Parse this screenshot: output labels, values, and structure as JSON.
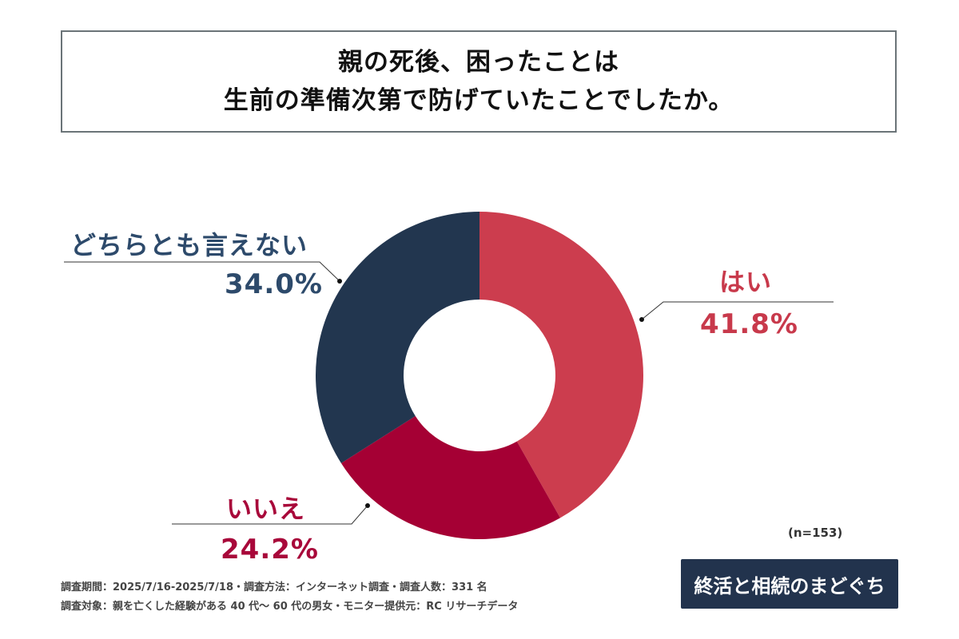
{
  "chart_data": {
    "type": "pie",
    "style": "donut",
    "title_lines": [
      "親の死後、困ったことは",
      "生前の準備次第で防げていたことでしたか。"
    ],
    "categories": [
      "はい",
      "いいえ",
      "どちらとも言えない"
    ],
    "values": [
      41.8,
      24.2,
      34.0
    ],
    "value_labels": [
      "41.8%",
      "24.2%",
      "34.0%"
    ],
    "colors": [
      "#cc3d4e",
      "#a50034",
      "#22364f"
    ],
    "label_colors": [
      "#c8394b",
      "#a8083a",
      "#2d4a6b"
    ],
    "start": "top",
    "direction": "clockwise",
    "sample_size": "(n=153)"
  },
  "footer": {
    "line1": "調査期間：2025/7/16-2025/7/18・調査方法：インターネット調査・調査人数：331 名",
    "line2": "調査対象：親を亡くした経験がある 40 代～ 60 代の男女・モニター提供元：RC リサーチデータ"
  },
  "logo": {
    "text": "終活と相続のまどぐち"
  }
}
